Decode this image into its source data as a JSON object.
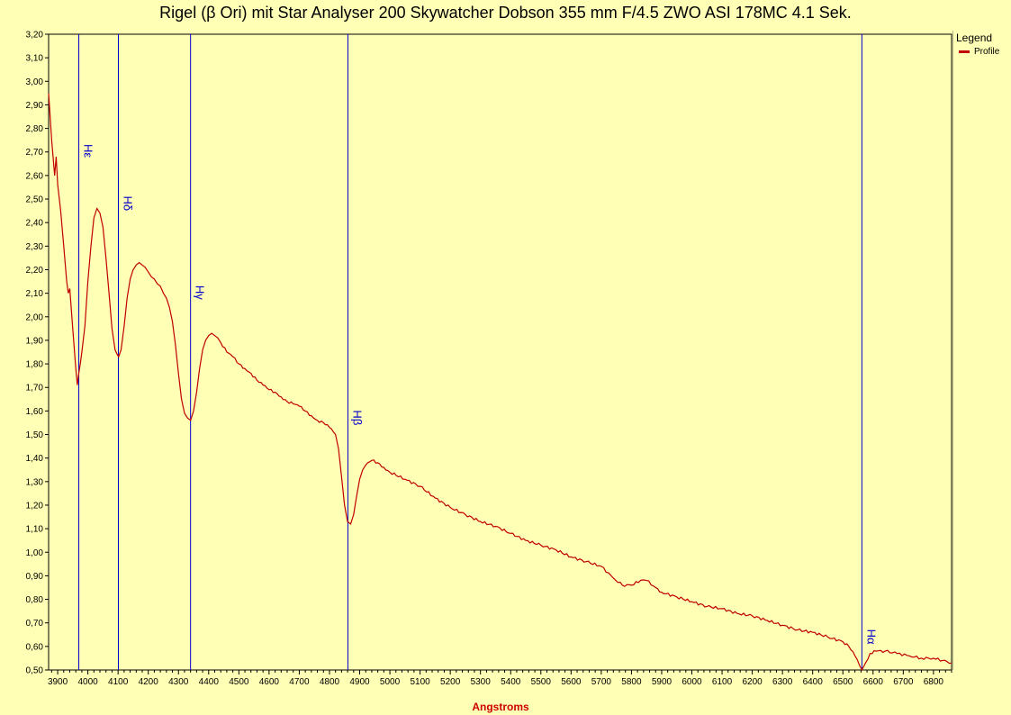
{
  "chart_data": {
    "type": "line",
    "title": "Rigel (β Ori) mit Star Analyser 200  Skywatcher Dobson 355 mm F/4.5 ZWO ASI 178MC 4.1 Sek.",
    "xlabel": "Angstroms",
    "ylabel": "",
    "xlim": [
      3870,
      6860
    ],
    "ylim": [
      0.5,
      3.2
    ],
    "x_ticks": [
      3900,
      4000,
      4100,
      4200,
      4300,
      4400,
      4500,
      4600,
      4700,
      4800,
      4900,
      5000,
      5100,
      5200,
      5300,
      5400,
      5500,
      5600,
      5700,
      5800,
      5900,
      6000,
      6100,
      6200,
      6300,
      6400,
      6500,
      6600,
      6700,
      6800
    ],
    "y_ticks": [
      "3,20",
      "3,10",
      "3,00",
      "2,90",
      "2,80",
      "2,70",
      "2,60",
      "2,50",
      "2,40",
      "2,30",
      "2,20",
      "2,10",
      "2,00",
      "1,90",
      "1,80",
      "1,70",
      "1,60",
      "1,50",
      "1,40",
      "1,30",
      "1,20",
      "1,10",
      "1,00",
      "0,90",
      "0,80",
      "0,70",
      "0,60",
      "0,50"
    ],
    "legend": {
      "title": "Legend",
      "placement": "right"
    },
    "series": [
      {
        "name": "Profile",
        "color": "#c00000",
        "points": [
          [
            3870,
            2.95
          ],
          [
            3880,
            2.75
          ],
          [
            3890,
            2.6
          ],
          [
            3895,
            2.68
          ],
          [
            3900,
            2.56
          ],
          [
            3910,
            2.45
          ],
          [
            3920,
            2.3
          ],
          [
            3930,
            2.15
          ],
          [
            3935,
            2.1
          ],
          [
            3940,
            2.12
          ],
          [
            3950,
            1.95
          ],
          [
            3960,
            1.78
          ],
          [
            3965,
            1.71
          ],
          [
            3970,
            1.76
          ],
          [
            3975,
            1.8
          ],
          [
            3980,
            1.85
          ],
          [
            3990,
            1.96
          ],
          [
            4000,
            2.15
          ],
          [
            4010,
            2.3
          ],
          [
            4020,
            2.42
          ],
          [
            4030,
            2.46
          ],
          [
            4040,
            2.44
          ],
          [
            4050,
            2.38
          ],
          [
            4060,
            2.25
          ],
          [
            4070,
            2.1
          ],
          [
            4080,
            1.95
          ],
          [
            4090,
            1.86
          ],
          [
            4102,
            1.83
          ],
          [
            4110,
            1.86
          ],
          [
            4120,
            1.96
          ],
          [
            4130,
            2.08
          ],
          [
            4140,
            2.16
          ],
          [
            4150,
            2.2
          ],
          [
            4160,
            2.22
          ],
          [
            4170,
            2.23
          ],
          [
            4180,
            2.22
          ],
          [
            4190,
            2.21
          ],
          [
            4200,
            2.19
          ],
          [
            4210,
            2.17
          ],
          [
            4220,
            2.16
          ],
          [
            4230,
            2.14
          ],
          [
            4240,
            2.13
          ],
          [
            4250,
            2.1
          ],
          [
            4260,
            2.08
          ],
          [
            4270,
            2.04
          ],
          [
            4280,
            1.98
          ],
          [
            4290,
            1.88
          ],
          [
            4300,
            1.76
          ],
          [
            4310,
            1.65
          ],
          [
            4320,
            1.59
          ],
          [
            4330,
            1.57
          ],
          [
            4340,
            1.56
          ],
          [
            4350,
            1.6
          ],
          [
            4360,
            1.68
          ],
          [
            4370,
            1.78
          ],
          [
            4380,
            1.86
          ],
          [
            4390,
            1.9
          ],
          [
            4400,
            1.92
          ],
          [
            4410,
            1.93
          ],
          [
            4420,
            1.92
          ],
          [
            4430,
            1.91
          ],
          [
            4440,
            1.89
          ],
          [
            4460,
            1.85
          ],
          [
            4480,
            1.83
          ],
          [
            4500,
            1.8
          ],
          [
            4520,
            1.78
          ],
          [
            4540,
            1.76
          ],
          [
            4560,
            1.73
          ],
          [
            4580,
            1.71
          ],
          [
            4600,
            1.69
          ],
          [
            4620,
            1.68
          ],
          [
            4640,
            1.66
          ],
          [
            4660,
            1.64
          ],
          [
            4680,
            1.63
          ],
          [
            4700,
            1.62
          ],
          [
            4720,
            1.6
          ],
          [
            4740,
            1.58
          ],
          [
            4760,
            1.56
          ],
          [
            4780,
            1.55
          ],
          [
            4800,
            1.53
          ],
          [
            4820,
            1.5
          ],
          [
            4830,
            1.44
          ],
          [
            4840,
            1.32
          ],
          [
            4850,
            1.2
          ],
          [
            4860,
            1.13
          ],
          [
            4870,
            1.12
          ],
          [
            4880,
            1.16
          ],
          [
            4890,
            1.24
          ],
          [
            4900,
            1.31
          ],
          [
            4910,
            1.35
          ],
          [
            4920,
            1.37
          ],
          [
            4940,
            1.39
          ],
          [
            4960,
            1.38
          ],
          [
            4980,
            1.36
          ],
          [
            5000,
            1.34
          ],
          [
            5050,
            1.31
          ],
          [
            5100,
            1.28
          ],
          [
            5150,
            1.23
          ],
          [
            5200,
            1.19
          ],
          [
            5250,
            1.16
          ],
          [
            5300,
            1.13
          ],
          [
            5350,
            1.11
          ],
          [
            5400,
            1.08
          ],
          [
            5450,
            1.05
          ],
          [
            5500,
            1.03
          ],
          [
            5550,
            1.01
          ],
          [
            5600,
            0.98
          ],
          [
            5650,
            0.96
          ],
          [
            5700,
            0.94
          ],
          [
            5740,
            0.89
          ],
          [
            5770,
            0.86
          ],
          [
            5800,
            0.86
          ],
          [
            5830,
            0.88
          ],
          [
            5850,
            0.88
          ],
          [
            5880,
            0.85
          ],
          [
            5900,
            0.83
          ],
          [
            5950,
            0.81
          ],
          [
            6000,
            0.79
          ],
          [
            6050,
            0.77
          ],
          [
            6100,
            0.76
          ],
          [
            6150,
            0.74
          ],
          [
            6200,
            0.73
          ],
          [
            6250,
            0.71
          ],
          [
            6300,
            0.69
          ],
          [
            6350,
            0.67
          ],
          [
            6400,
            0.66
          ],
          [
            6450,
            0.64
          ],
          [
            6500,
            0.62
          ],
          [
            6520,
            0.6
          ],
          [
            6540,
            0.56
          ],
          [
            6555,
            0.52
          ],
          [
            6563,
            0.5
          ],
          [
            6575,
            0.53
          ],
          [
            6590,
            0.57
          ],
          [
            6610,
            0.58
          ],
          [
            6640,
            0.58
          ],
          [
            6680,
            0.57
          ],
          [
            6720,
            0.56
          ],
          [
            6760,
            0.55
          ],
          [
            6800,
            0.55
          ],
          [
            6830,
            0.54
          ],
          [
            6860,
            0.53
          ]
        ]
      }
    ],
    "vertical_lines": [
      {
        "x": 3970,
        "label": "Hε"
      },
      {
        "x": 4101,
        "label": "Hδ"
      },
      {
        "x": 4340,
        "label": "Hγ"
      },
      {
        "x": 4861,
        "label": "Hβ"
      },
      {
        "x": 6563,
        "label": "Hα"
      }
    ],
    "vertical_line_color": "#0000cc",
    "grid": false
  }
}
